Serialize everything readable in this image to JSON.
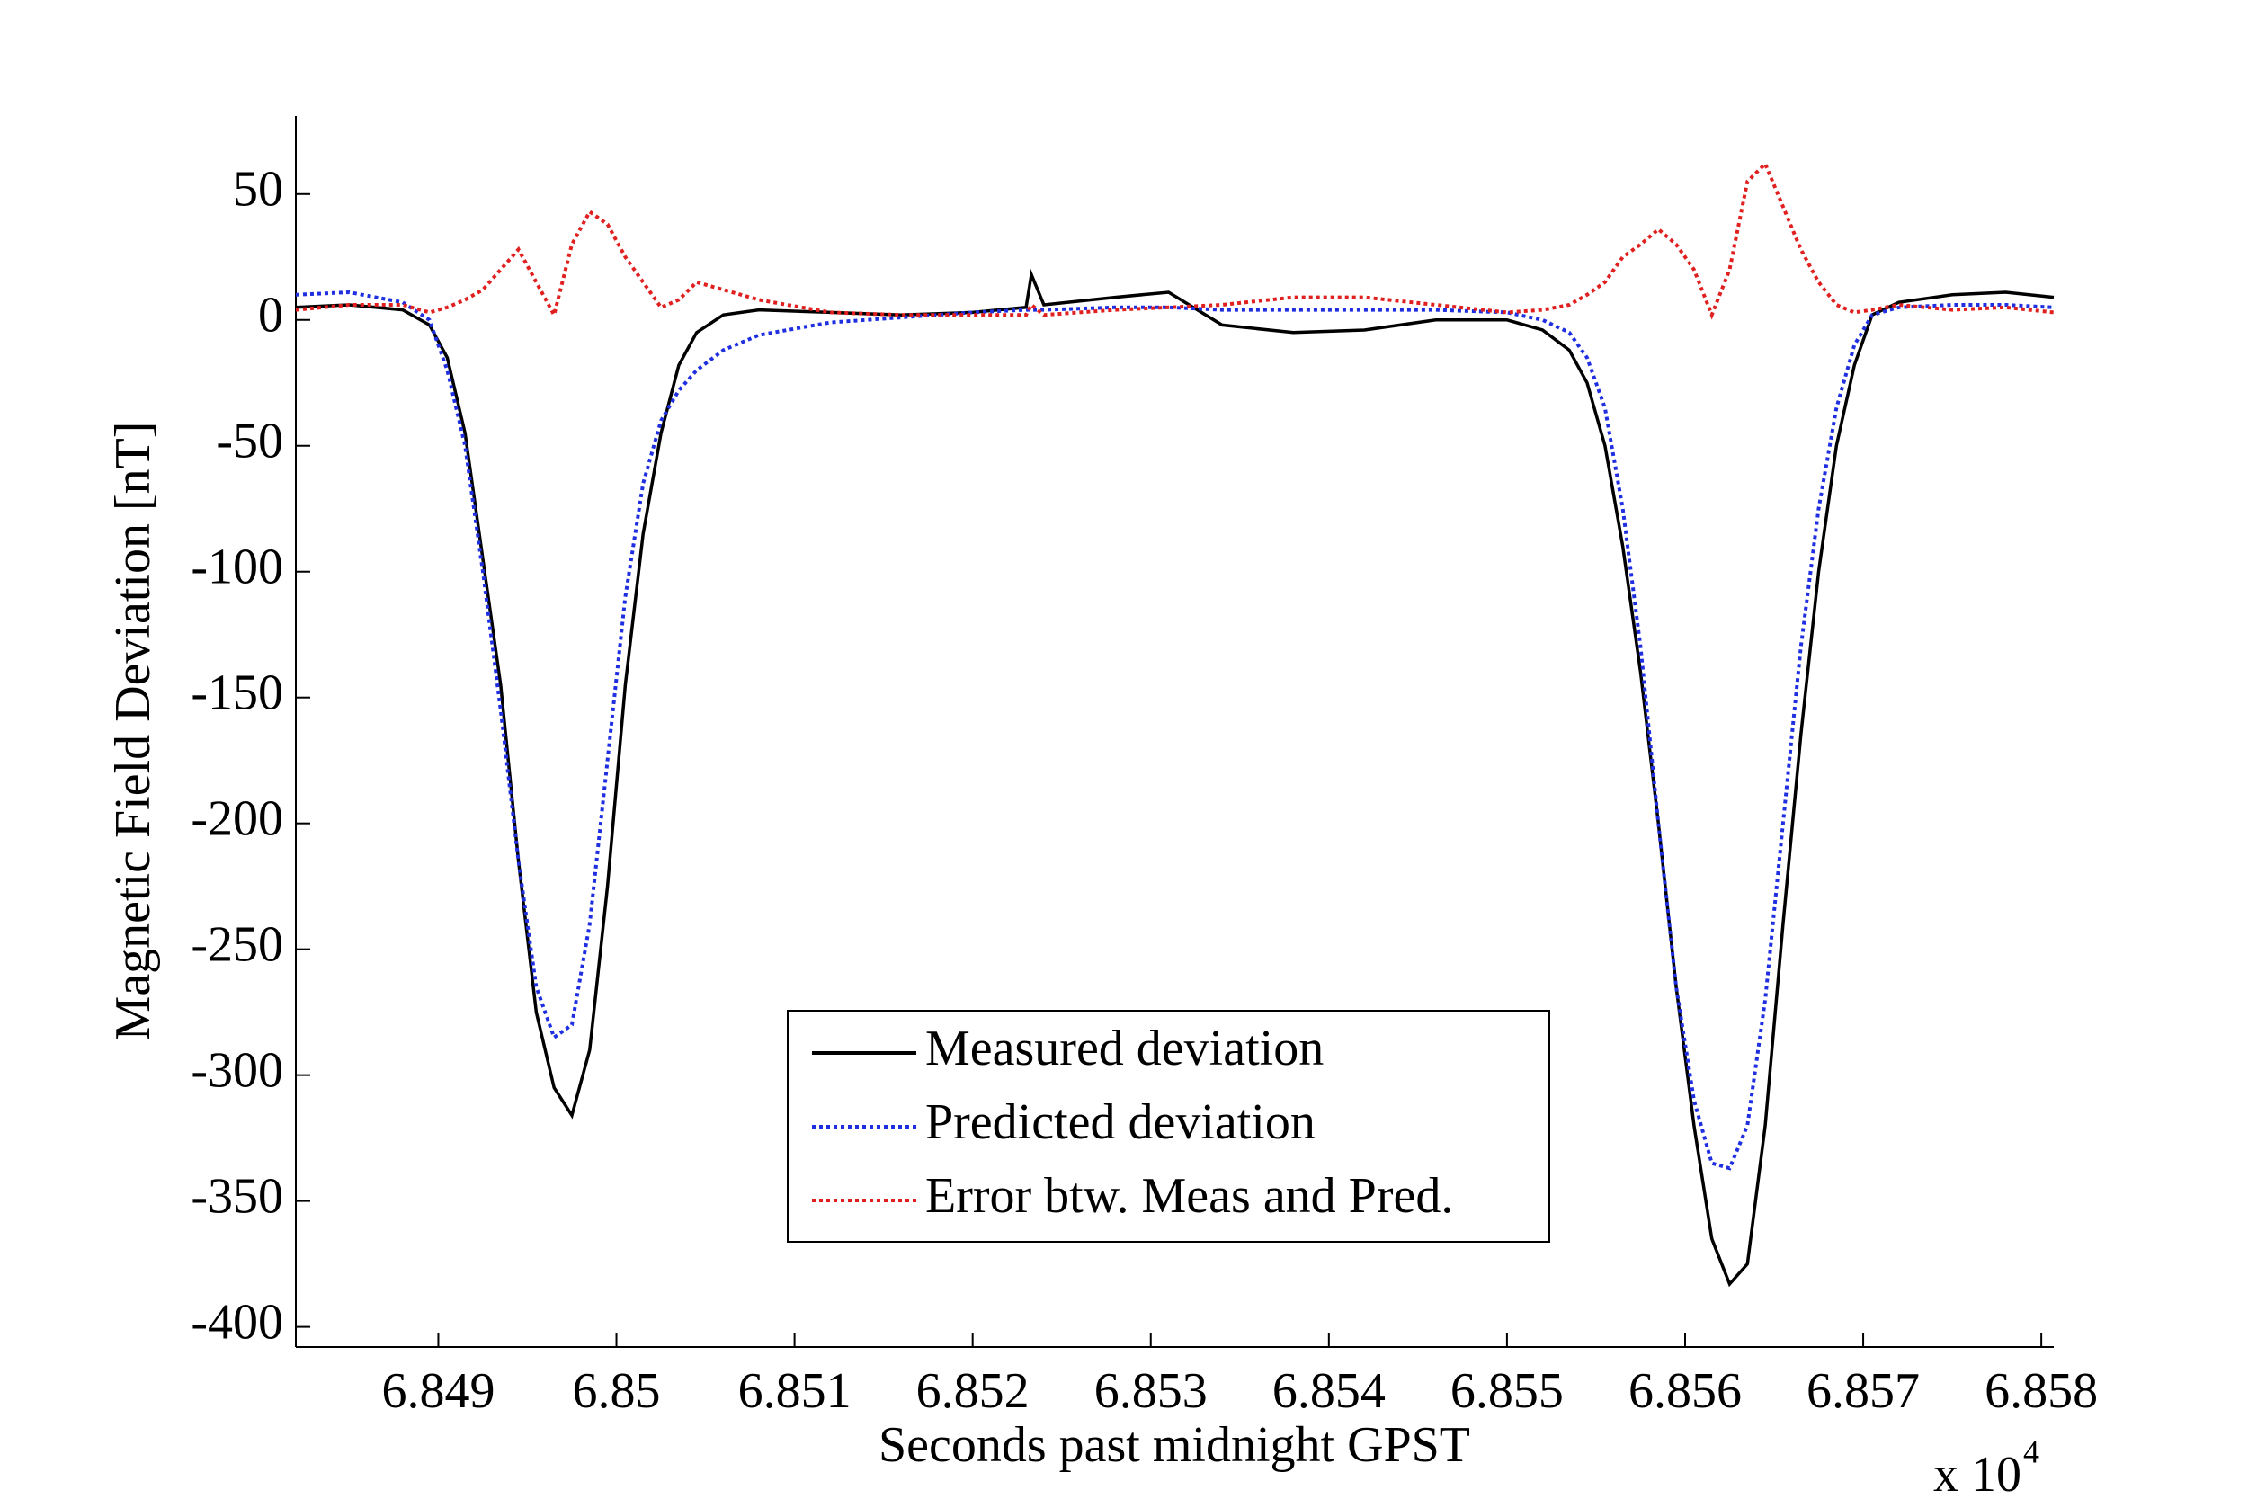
{
  "chart_data": {
    "type": "line",
    "x_label": "Seconds past midnight GPST",
    "y_label": "Magnetic Field Deviation [nT]",
    "x_multiplier": "x 10",
    "x_multiplier_exp": "4",
    "xlim": [
      6.8482,
      6.85807
    ],
    "ylim": [
      -408,
      81
    ],
    "xticks": [
      6.849,
      6.85,
      6.851,
      6.852,
      6.853,
      6.854,
      6.855,
      6.856,
      6.857,
      6.858
    ],
    "yticks": [
      50,
      0,
      -50,
      -100,
      -150,
      -200,
      -250,
      -300,
      -350,
      -400
    ],
    "legend": "lower center",
    "grid": false,
    "x": [
      6.8482,
      6.8485,
      6.8488,
      6.84895,
      6.84905,
      6.84915,
      6.84925,
      6.84935,
      6.84945,
      6.84955,
      6.84965,
      6.84975,
      6.84985,
      6.84995,
      6.85005,
      6.85015,
      6.85025,
      6.85035,
      6.85045,
      6.8506,
      6.8508,
      6.8512,
      6.8516,
      6.852,
      6.8523,
      6.85233,
      6.8524,
      6.8528,
      6.8531,
      6.8534,
      6.8538,
      6.8542,
      6.8546,
      6.855,
      6.8552,
      6.85535,
      6.85545,
      6.85555,
      6.85565,
      6.85575,
      6.85585,
      6.85595,
      6.85605,
      6.85615,
      6.85625,
      6.85635,
      6.85645,
      6.85655,
      6.85665,
      6.85675,
      6.85685,
      6.85695,
      6.85705,
      6.8572,
      6.8575,
      6.8578,
      6.85807
    ],
    "series": [
      {
        "name": "Measured deviation",
        "color": "#000000",
        "dash": "solid",
        "values": [
          5,
          6,
          4,
          -2,
          -15,
          -45,
          -95,
          -145,
          -215,
          -275,
          -305,
          -316,
          -290,
          -225,
          -145,
          -85,
          -45,
          -18,
          -5,
          2,
          4,
          3,
          2,
          3,
          5,
          18,
          6,
          9,
          11,
          -2,
          -5,
          -4,
          0,
          0,
          -4,
          -12,
          -25,
          -50,
          -90,
          -140,
          -200,
          -265,
          -320,
          -365,
          -383,
          -375,
          -320,
          -240,
          -165,
          -100,
          -50,
          -18,
          2,
          7,
          10,
          11,
          9
        ]
      },
      {
        "name": "Predicted deviation",
        "color": "#1f2fe0",
        "dash": "dotted",
        "values": [
          10,
          11,
          7,
          0,
          -20,
          -50,
          -100,
          -155,
          -215,
          -265,
          -285,
          -280,
          -240,
          -175,
          -110,
          -65,
          -40,
          -28,
          -20,
          -12,
          -6,
          -1,
          1,
          3,
          4,
          4,
          4,
          5,
          5,
          4,
          4,
          4,
          4,
          3,
          0,
          -5,
          -15,
          -35,
          -75,
          -130,
          -200,
          -265,
          -310,
          -335,
          -337,
          -320,
          -270,
          -200,
          -130,
          -75,
          -35,
          -10,
          2,
          5,
          6,
          6,
          5
        ]
      },
      {
        "name": "Error btw. Meas and Pred.",
        "color": "#e01f1f",
        "dash": "dotted",
        "values": [
          4,
          6,
          6,
          3,
          5,
          8,
          12,
          20,
          28,
          15,
          2,
          30,
          43,
          38,
          25,
          15,
          5,
          8,
          15,
          12,
          8,
          3,
          2,
          2,
          2,
          6,
          2,
          4,
          5,
          6,
          9,
          9,
          6,
          3,
          4,
          6,
          10,
          15,
          25,
          30,
          36,
          30,
          20,
          2,
          20,
          55,
          62,
          45,
          28,
          15,
          6,
          3,
          4,
          6,
          4,
          5,
          3
        ]
      }
    ]
  }
}
